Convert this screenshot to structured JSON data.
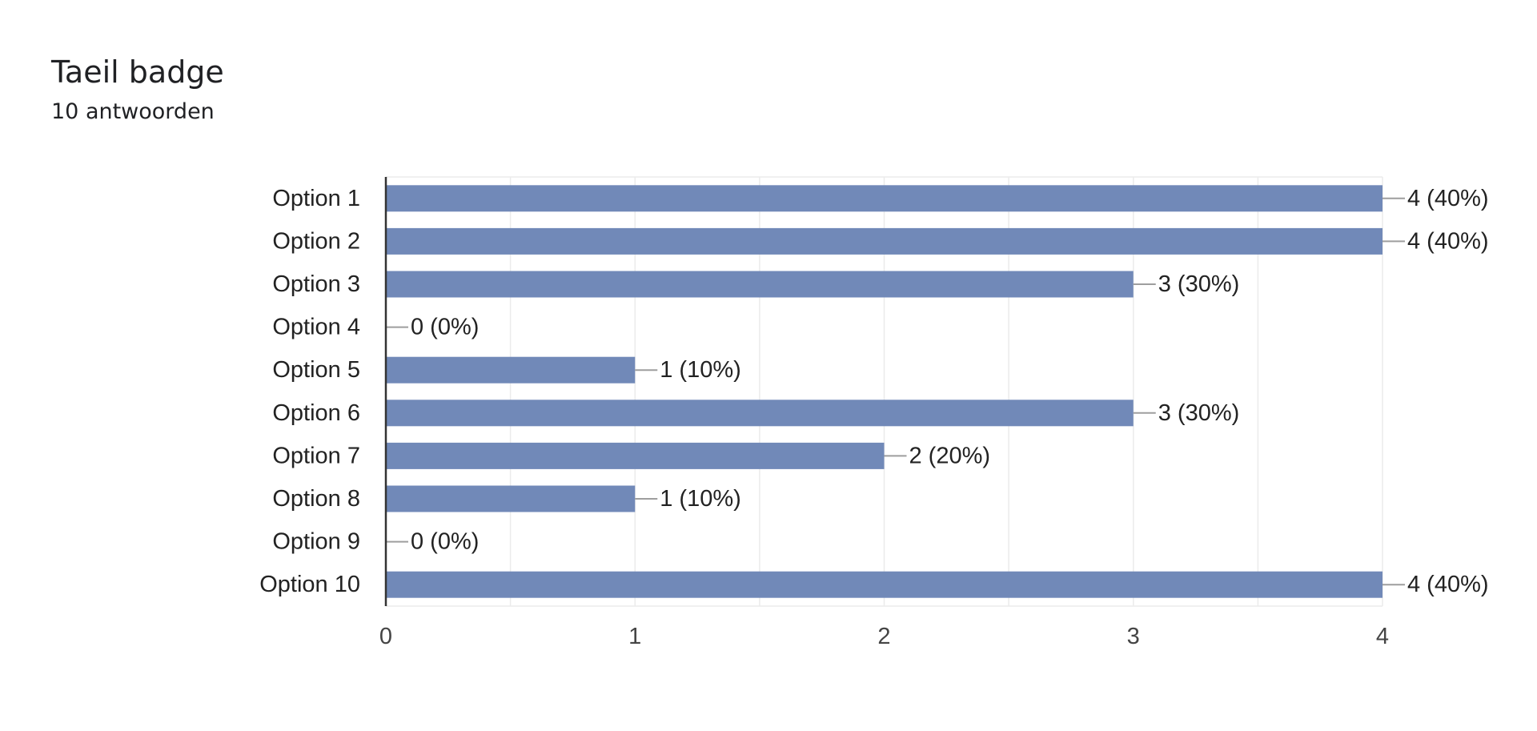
{
  "header": {
    "title": "Taeil badge",
    "subtitle": "10 antwoorden"
  },
  "colors": {
    "bar": "#7189b8",
    "grid": "#ebebeb",
    "axis": "#333333",
    "leader": "#9e9e9e"
  },
  "chart_data": {
    "type": "bar",
    "orientation": "horizontal",
    "categories": [
      "Option 1",
      "Option 2",
      "Option 3",
      "Option 4",
      "Option 5",
      "Option 6",
      "Option 7",
      "Option 8",
      "Option 9",
      "Option 10"
    ],
    "values": [
      4,
      4,
      3,
      0,
      1,
      3,
      2,
      1,
      0,
      4
    ],
    "data_labels": [
      "4 (40%)",
      "4 (40%)",
      "3 (30%)",
      "0 (0%)",
      "1 (10%)",
      "3 (30%)",
      "2 (20%)",
      "1 (10%)",
      "0 (0%)",
      "4 (40%)"
    ],
    "title": "Taeil badge",
    "subtitle": "10 antwoorden",
    "xlim": [
      0,
      4
    ],
    "xticks": [
      0,
      1,
      2,
      3,
      4
    ],
    "grid": true,
    "legend": "none"
  }
}
